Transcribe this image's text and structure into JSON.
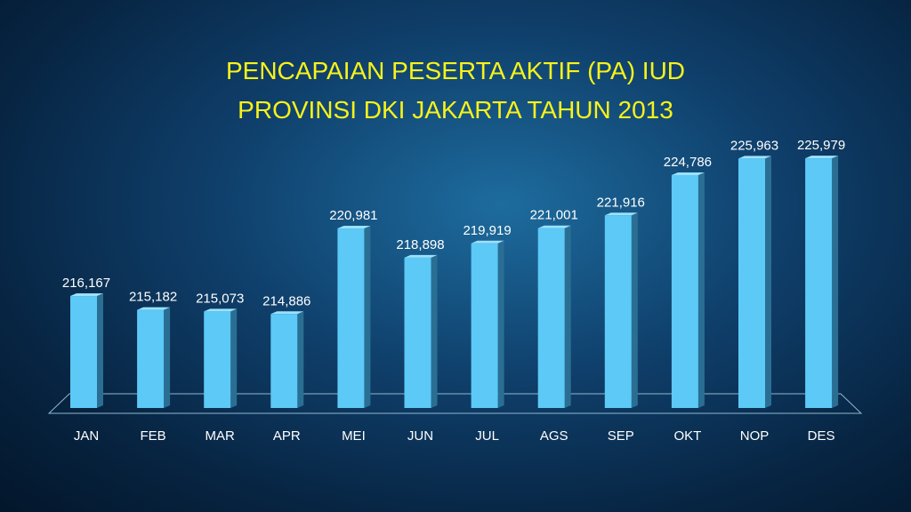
{
  "chart_data": {
    "type": "bar",
    "title": "PENCAPAIAN PESERTA AKTIF (PA) IUD\nPROVINSI DKI JAKARTA TAHUN 2013",
    "categories": [
      "JAN",
      "FEB",
      "MAR",
      "APR",
      "MEI",
      "JUN",
      "JUL",
      "AGS",
      "SEP",
      "OKT",
      "NOP",
      "DES"
    ],
    "values": [
      216167,
      215182,
      215073,
      214886,
      220981,
      218898,
      219919,
      221001,
      221916,
      224786,
      225963,
      225979
    ],
    "value_labels": [
      "216,167",
      "215,182",
      "215,073",
      "214,886",
      "220,981",
      "218,898",
      "219,919",
      "221,001",
      "221,916",
      "224,786",
      "225,963",
      "225,979"
    ],
    "color": "#5cc9f7",
    "ylim": [
      208000,
      227000
    ]
  }
}
